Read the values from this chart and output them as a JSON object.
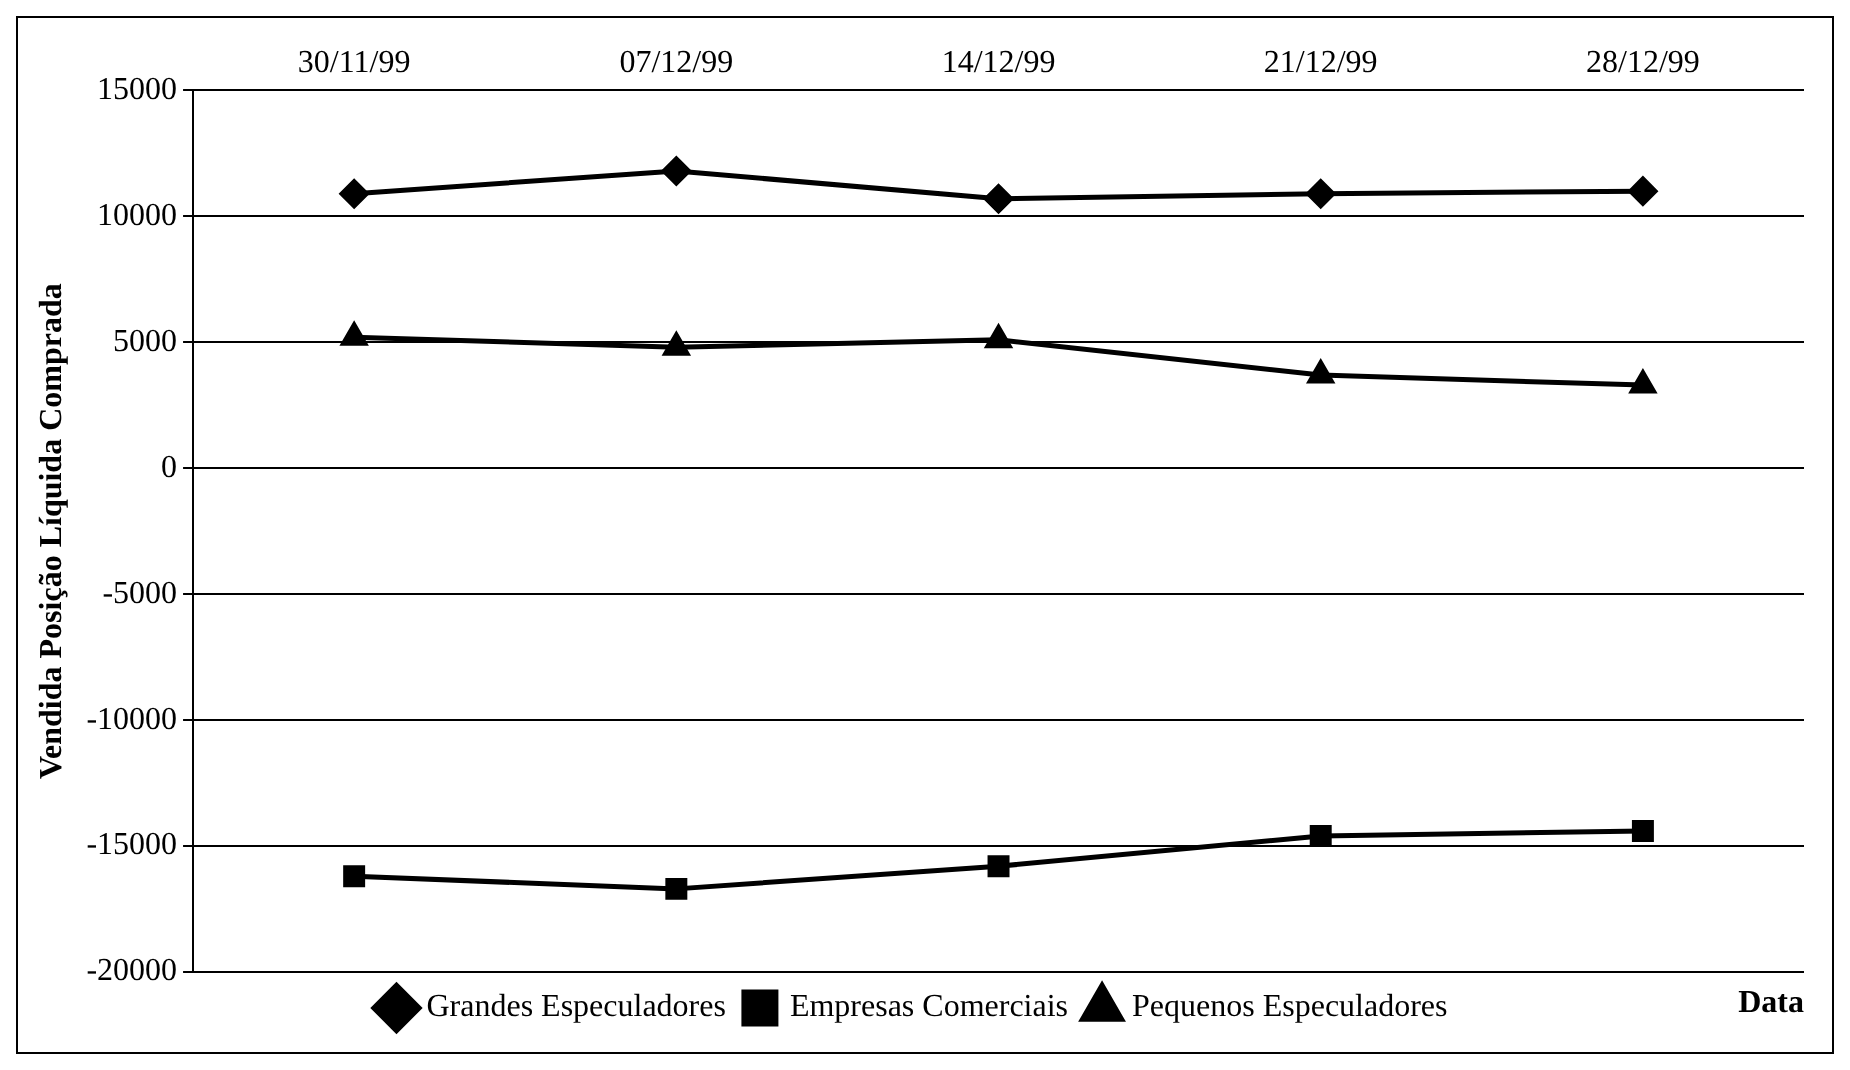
{
  "chart_data": {
    "type": "line",
    "xlabel": "Data",
    "ylabel": "Vendida Posição Líquida Comprada",
    "categories": [
      "30/11/99",
      "07/12/99",
      "14/12/99",
      "21/12/99",
      "28/12/99"
    ],
    "series": [
      {
        "name": "Grandes Especuladores",
        "color": "#000000",
        "marker": "diamond",
        "values": [
          10900,
          11800,
          10700,
          10900,
          11000
        ]
      },
      {
        "name": "Empresas Comerciais",
        "color": "#000000",
        "marker": "square",
        "values": [
          -16200,
          -16700,
          -15800,
          -14600,
          -14400
        ]
      },
      {
        "name": "Pequenos Especuladores",
        "color": "#000000",
        "marker": "triangle",
        "values": [
          5200,
          4800,
          5100,
          3700,
          3300
        ]
      }
    ],
    "ylim": [
      -20000,
      15000
    ],
    "yticks": [
      -20000,
      -15000,
      -10000,
      -5000,
      0,
      5000,
      10000,
      15000
    ],
    "grid": "y",
    "legend": "bottom",
    "line_style": "solid"
  }
}
